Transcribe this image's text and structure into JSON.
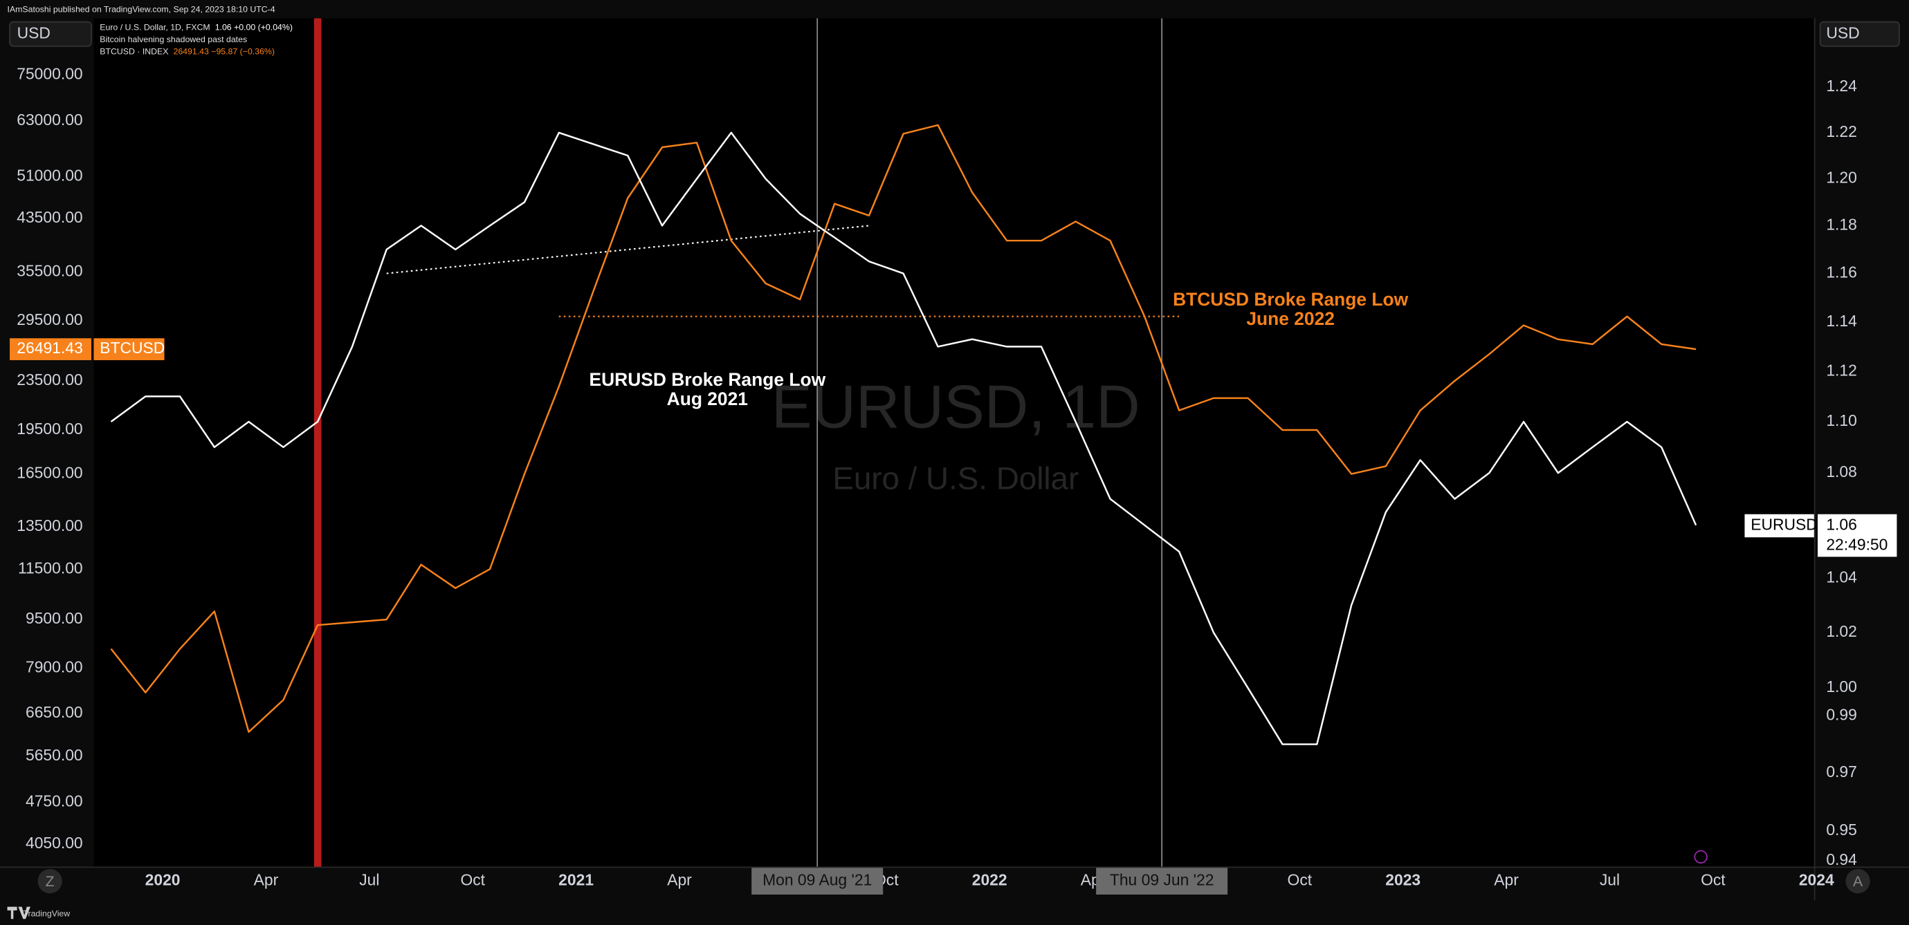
{
  "header": {
    "published": "IAmSatoshi published on TradingView.com, Sep 24, 2023 18:10 UTC-4",
    "currency_left": "USD",
    "currency_right": "USD"
  },
  "legend_lines": [
    {
      "label": "Euro / U.S. Dollar, 1D, FXCM",
      "value": "1.06  +0.00 (+0.04%)",
      "color": "#ffffff"
    },
    {
      "label": "Bitcoin halvening shadowed past dates",
      "value": "",
      "color": "#ffffff"
    },
    {
      "label": "BTCUSD · INDEX",
      "value": "26491.43  −95.87 (−0.36%)",
      "color": "#f7821b"
    }
  ],
  "chart_data": {
    "type": "line",
    "log_scale": true,
    "grid": false,
    "watermark": "EURUSD, 1D",
    "watermark_subtitle": "Euro / U.S. Dollar",
    "x": [
      "2019-11",
      "2019-12",
      "2020-01",
      "2020-02",
      "2020-03",
      "2020-04",
      "2020-05",
      "2020-06",
      "2020-07",
      "2020-08",
      "2020-09",
      "2020-10",
      "2020-11",
      "2020-12",
      "2021-01",
      "2021-02",
      "2021-03",
      "2021-04",
      "2021-05",
      "2021-06",
      "2021-07",
      "2021-08",
      "2021-09",
      "2021-10",
      "2021-11",
      "2021-12",
      "2022-01",
      "2022-02",
      "2022-03",
      "2022-04",
      "2022-05",
      "2022-06",
      "2022-07",
      "2022-08",
      "2022-09",
      "2022-10",
      "2022-11",
      "2022-12",
      "2023-01",
      "2023-02",
      "2023-03",
      "2023-04",
      "2023-05",
      "2023-06",
      "2023-07",
      "2023-08",
      "2023-09"
    ],
    "series": [
      {
        "name": "BTCUSD",
        "color": "#f7821b",
        "axis": "y",
        "values": [
          8500,
          7200,
          8500,
          9800,
          6200,
          7000,
          9300,
          9400,
          9500,
          11700,
          10700,
          11500,
          16500,
          23000,
          33000,
          47000,
          57000,
          58000,
          40000,
          34000,
          32000,
          46000,
          44000,
          60000,
          62000,
          48000,
          40000,
          40000,
          43000,
          40000,
          30000,
          21000,
          22000,
          22000,
          19500,
          19500,
          16500,
          17000,
          21000,
          23500,
          26000,
          29000,
          27500,
          27000,
          30000,
          27000,
          26491.43
        ]
      },
      {
        "name": "EURUSD",
        "color": "#ffffff",
        "axis": "y2",
        "values": [
          1.1,
          1.11,
          1.11,
          1.09,
          1.1,
          1.09,
          1.1,
          1.13,
          1.17,
          1.18,
          1.17,
          1.18,
          1.19,
          1.22,
          1.215,
          1.21,
          1.18,
          1.2,
          1.22,
          1.2,
          1.185,
          1.175,
          1.165,
          1.16,
          1.13,
          1.133,
          1.13,
          1.13,
          1.1,
          1.07,
          1.06,
          1.05,
          1.02,
          1.0,
          0.98,
          0.98,
          1.03,
          1.065,
          1.085,
          1.07,
          1.08,
          1.1,
          1.08,
          1.09,
          1.1,
          1.09,
          1.06
        ]
      }
    ],
    "ylim": [
      3720,
      93000
    ],
    "yticks": [
      {
        "value": 75000,
        "label": "75000.00"
      },
      {
        "value": 63000,
        "label": "63000.00"
      },
      {
        "value": 51000,
        "label": "51000.00"
      },
      {
        "value": 43500,
        "label": "43500.00"
      },
      {
        "value": 35500,
        "label": "35500.00"
      },
      {
        "value": 29500,
        "label": "29500.00"
      },
      {
        "value": 23500,
        "label": "23500.00"
      },
      {
        "value": 19500,
        "label": "19500.00"
      },
      {
        "value": 16500,
        "label": "16500.00"
      },
      {
        "value": 13500,
        "label": "13500.00"
      },
      {
        "value": 11500,
        "label": "11500.00"
      },
      {
        "value": 9500,
        "label": "9500.00"
      },
      {
        "value": 7900,
        "label": "7900.00"
      },
      {
        "value": 6650,
        "label": "6650.00"
      },
      {
        "value": 5650,
        "label": "5650.00"
      },
      {
        "value": 4750,
        "label": "4750.00"
      },
      {
        "value": 4050,
        "label": "4050.00"
      }
    ],
    "y2lim": [
      0.938,
      1.271
    ],
    "y2ticks": [
      1.24,
      1.22,
      {
        "value": 1.2,
        "label": "1.20"
      },
      1.18,
      1.16,
      1.14,
      1.12,
      {
        "value": 1.1,
        "label": "1.10"
      },
      1.08,
      1.04,
      1.02,
      {
        "value": 1,
        "label": "1.00"
      },
      0.99,
      0.97,
      0.95,
      0.94
    ],
    "xticks": [
      {
        "value": "2020-01",
        "label": "2020"
      },
      {
        "value": "2020-04",
        "label": "Apr"
      },
      {
        "value": "2020-07",
        "label": "Jul"
      },
      {
        "value": "2020-10",
        "label": "Oct"
      },
      {
        "value": "2021-01",
        "label": "2021"
      },
      {
        "value": "2021-04",
        "label": "Apr"
      },
      {
        "value": "2021-07",
        "label": "Jul"
      },
      {
        "value": "2021-10",
        "label": "Oct"
      },
      {
        "value": "2022-01",
        "label": "2022"
      },
      {
        "value": "2022-04",
        "label": "Apr"
      },
      {
        "value": "2022-07",
        "label": "Jul"
      },
      {
        "value": "2022-10",
        "label": "Oct"
      },
      {
        "value": "2023-01",
        "label": "2023"
      },
      {
        "value": "2023-04",
        "label": "Apr"
      },
      {
        "value": "2023-07",
        "label": "Jul"
      },
      {
        "value": "2023-10",
        "label": "Oct"
      },
      {
        "value": "2024-01",
        "label": "2024"
      }
    ],
    "range_lines": [
      {
        "axis": "y2",
        "color": "#ffffff",
        "x": [
          "2020-07",
          "2021-09"
        ],
        "values": [
          1.16,
          1.18
        ]
      },
      {
        "axis": "y",
        "color": "#f7821b",
        "x": [
          "2020-12",
          "2022-06"
        ],
        "values": [
          30000,
          30000
        ]
      }
    ],
    "vlines": [
      {
        "x": "2021-08",
        "label": "Mon 09 Aug '21"
      },
      {
        "x": "2022-06",
        "label": "Thu 09 Jun '22"
      }
    ],
    "shaded": {
      "x": "2020-05",
      "color": "#b71c1c"
    },
    "annotations": [
      {
        "lines": [
          "EURUSD Broke Range Low",
          "Aug 2021"
        ],
        "color": "#ffffff"
      },
      {
        "lines": [
          "BTCUSD Broke Range Low",
          "June 2022"
        ],
        "color": "#f7821b"
      }
    ],
    "countdown": "22:49:50"
  },
  "footer": {
    "brand": "TradingView",
    "buttons": [
      "Z",
      "A"
    ]
  }
}
